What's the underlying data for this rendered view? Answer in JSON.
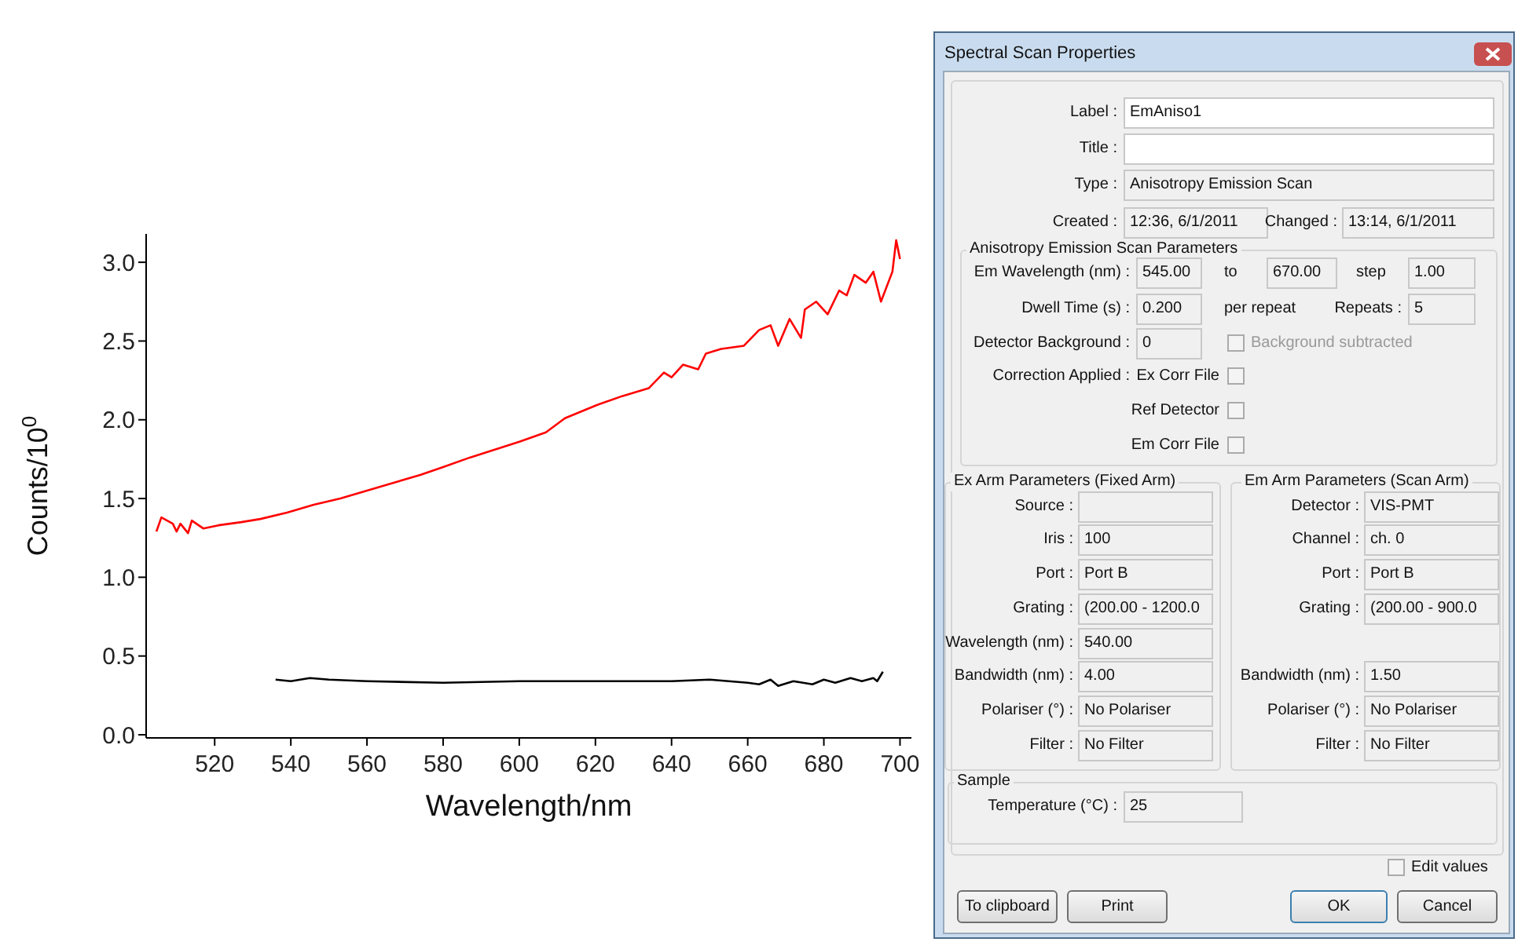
{
  "chart_data": [
    {
      "type": "line",
      "xlabel": "Wavelength/nm",
      "ylabel": "Counts/10$^{0}$",
      "xlim": [
        502,
        703
      ],
      "ylim": [
        -0.02,
        3.18
      ],
      "xticks": [
        520,
        540,
        560,
        580,
        600,
        620,
        640,
        660,
        680,
        700
      ],
      "yticks": [
        {
          "value": 0,
          "label": "0.0"
        },
        0.5,
        {
          "value": 1,
          "label": "1.0"
        },
        1.5,
        {
          "value": 2,
          "label": "2.0"
        },
        2.5,
        {
          "value": 3,
          "label": "3.0"
        }
      ],
      "line_style": "solid",
      "marker": "none",
      "series": [
        {
          "color": "#ff0000",
          "x": [
            504.7,
            506,
            509,
            510,
            511,
            513,
            514,
            517,
            521,
            527,
            532,
            539,
            546,
            553,
            560,
            567,
            574,
            580,
            587,
            600,
            607,
            612,
            620,
            627,
            634,
            638,
            640,
            643,
            647,
            649,
            653,
            659,
            663,
            666,
            668,
            671,
            674,
            675,
            678,
            681,
            684,
            686,
            688,
            691,
            693,
            695,
            698,
            699,
            700
          ],
          "values": [
            1.29,
            1.38,
            1.34,
            1.29,
            1.34,
            1.28,
            1.36,
            1.31,
            1.33,
            1.35,
            1.37,
            1.41,
            1.46,
            1.5,
            1.55,
            1.6,
            1.65,
            1.7,
            1.76,
            1.86,
            1.92,
            2.01,
            2.09,
            2.15,
            2.2,
            2.3,
            2.27,
            2.35,
            2.32,
            2.42,
            2.45,
            2.47,
            2.57,
            2.6,
            2.47,
            2.64,
            2.52,
            2.7,
            2.75,
            2.67,
            2.82,
            2.79,
            2.92,
            2.87,
            2.94,
            2.75,
            2.94,
            3.14,
            3.02
          ]
        },
        {
          "color": "#000000",
          "x": [
            536,
            540,
            545,
            550,
            560,
            580,
            600,
            620,
            640,
            650,
            655,
            660,
            663,
            666,
            668,
            672,
            677,
            680,
            683,
            687,
            690,
            693,
            694,
            695.5
          ],
          "values": [
            0.35,
            0.34,
            0.36,
            0.35,
            0.34,
            0.33,
            0.34,
            0.34,
            0.34,
            0.35,
            0.34,
            0.33,
            0.32,
            0.35,
            0.31,
            0.34,
            0.32,
            0.35,
            0.33,
            0.36,
            0.34,
            0.36,
            0.34,
            0.4
          ]
        }
      ]
    },
    {
      "type": "other",
      "title": "Spectral Scan Properties",
      "annotations": [
        "Label :",
        "EmAniso1",
        "Title :",
        "Type :",
        "Anisotropy Emission Scan",
        "Created :",
        "12:36, 6/1/2011",
        "Changed :",
        "13:14, 6/1/2011",
        "Anisotropy Emission Scan Parameters",
        "Em Wavelength (nm) :",
        "545.00",
        "to",
        "670.00",
        "step",
        "1.00",
        "Dwell Time (s) :",
        "0.200",
        "per repeat",
        "Repeats :",
        "5",
        "Detector Background :",
        "0",
        "Background subtracted",
        "Correction Applied :",
        "Ex Corr File",
        "Ref Detector",
        "Em Corr File",
        "Ex Arm Parameters (Fixed Arm)",
        "Em Arm Parameters (Scan Arm)",
        "Source :",
        "Iris :",
        "100",
        "Port :",
        "Port B",
        "Grating :",
        "(200.00 - 1200.0",
        "Wavelength (nm) :",
        "540.00",
        "Bandwidth (nm) :",
        "4.00",
        "Polariser (°) :",
        "No Polariser",
        "Filter :",
        "No Filter",
        "Detector :",
        "VIS-PMT",
        "Channel :",
        "ch. 0",
        "Port :",
        "Port B",
        "Grating :",
        "(200.00 - 900.0",
        "Bandwidth (nm) :",
        "1.50",
        "Polariser (°) :",
        "No Polariser",
        "Filter :",
        "No Filter",
        "Sample",
        "Temperature (°C) :",
        "25",
        "Edit values",
        "To clipboard",
        "Print",
        "OK",
        "Cancel"
      ]
    }
  ]
}
